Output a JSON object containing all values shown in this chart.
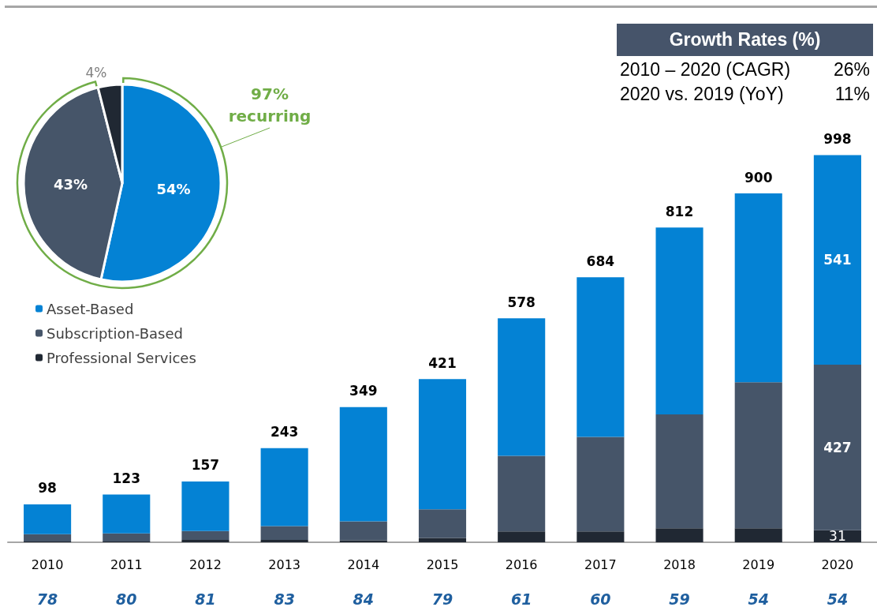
{
  "chart_data": [
    {
      "type": "pie",
      "categories": [
        null,
        null,
        null
      ],
      "values": [
        54,
        43,
        4
      ],
      "colors": [
        "#0482d4",
        "#465569",
        "#202833"
      ],
      "value_labels": [
        "54%",
        "43%",
        "4%"
      ],
      "annotations": [
        "97% recurring"
      ]
    },
    {
      "type": "other",
      "title": "Growth Rates (%)",
      "annotations": [
        "2010 – 2020 (CAGR)",
        "26%",
        "2020 vs. 2019 (YoY)",
        "11%"
      ]
    },
    {
      "type": "bar",
      "stacked": true,
      "categories": [
        "2010",
        "2011",
        "2012",
        "2013",
        "2014",
        "2015",
        "2016",
        "2017",
        "2018",
        "2019",
        "2020"
      ],
      "ylim": [
        0,
        1000
      ],
      "tick_labels": "x",
      "legend": "top left",
      "series": [
        {
          "name": "Professional Services",
          "color": "#202833",
          "values": [
            2,
            2,
            6,
            6,
            5,
            11,
            28,
            28,
            36,
            36,
            31
          ],
          "value_labels": [
            null,
            null,
            null,
            null,
            null,
            null,
            null,
            null,
            null,
            null,
            "31"
          ]
        },
        {
          "name": "Subscription-Based",
          "color": "#465569",
          "values": [
            19,
            21,
            23,
            36,
            49,
            74,
            195,
            244,
            294,
            377,
            427
          ],
          "value_labels": [
            null,
            null,
            null,
            null,
            null,
            null,
            null,
            null,
            null,
            null,
            "427"
          ]
        },
        {
          "name": "Asset-Based",
          "color": "#0482d4",
          "values": [
            77,
            100,
            128,
            201,
            295,
            336,
            355,
            412,
            482,
            487,
            541
          ],
          "value_labels": [
            null,
            null,
            null,
            null,
            null,
            null,
            null,
            null,
            null,
            null,
            "541"
          ]
        }
      ],
      "totals": [
        "98",
        "123",
        "157",
        "243",
        "349",
        "421",
        "578",
        "684",
        "812",
        "900",
        "998"
      ],
      "annotations": [
        "78",
        "80",
        "81",
        "83",
        "84",
        "79",
        "61",
        "60",
        "59",
        "54",
        "54"
      ]
    }
  ]
}
